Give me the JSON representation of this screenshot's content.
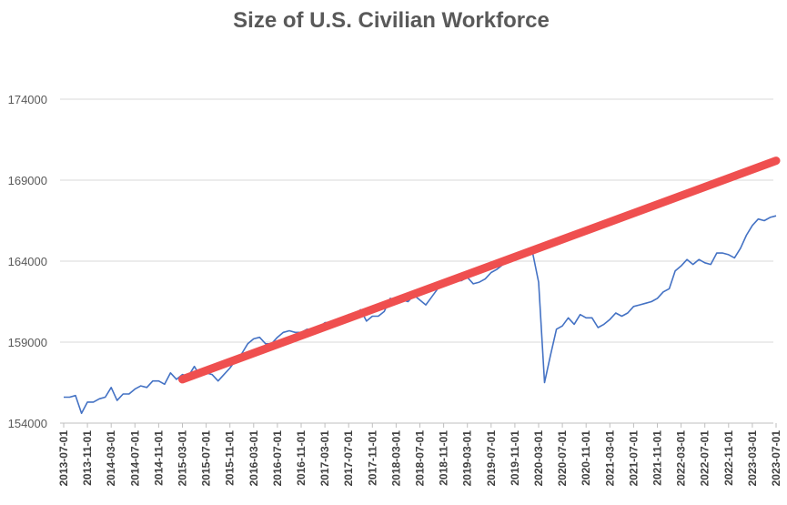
{
  "chart_data": {
    "type": "line",
    "title": "Size of U.S. Civilian Workforce",
    "xlabel": "",
    "ylabel": "",
    "ylim": [
      154000,
      176000
    ],
    "yticks": [
      154000,
      159000,
      164000,
      169000,
      174000
    ],
    "grid": true,
    "legend": "none",
    "xtick_labels": [
      "2013-07-01",
      "2013-11-01",
      "2014-03-01",
      "2014-07-01",
      "2014-11-01",
      "2015-03-01",
      "2015-07-01",
      "2015-11-01",
      "2016-03-01",
      "2016-07-01",
      "2016-11-01",
      "2017-03-01",
      "2017-07-01",
      "2017-11-01",
      "2018-03-01",
      "2018-07-01",
      "2018-11-01",
      "2019-03-01",
      "2019-07-01",
      "2019-11-01",
      "2020-03-01",
      "2020-07-01",
      "2020-11-01",
      "2021-03-01",
      "2021-07-01",
      "2021-11-01",
      "2022-03-01",
      "2022-07-01",
      "2022-11-01",
      "2023-03-01",
      "2023-07-01"
    ],
    "series": [
      {
        "color": "#4472c4",
        "x": [
          "2013-07",
          "2013-08",
          "2013-09",
          "2013-10",
          "2013-11",
          "2013-12",
          "2014-01",
          "2014-02",
          "2014-03",
          "2014-04",
          "2014-05",
          "2014-06",
          "2014-07",
          "2014-08",
          "2014-09",
          "2014-10",
          "2014-11",
          "2014-12",
          "2015-01",
          "2015-02",
          "2015-03",
          "2015-04",
          "2015-05",
          "2015-06",
          "2015-07",
          "2015-08",
          "2015-09",
          "2015-10",
          "2015-11",
          "2015-12",
          "2016-01",
          "2016-02",
          "2016-03",
          "2016-04",
          "2016-05",
          "2016-06",
          "2016-07",
          "2016-08",
          "2016-09",
          "2016-10",
          "2016-11",
          "2016-12",
          "2017-01",
          "2017-02",
          "2017-03",
          "2017-04",
          "2017-05",
          "2017-06",
          "2017-07",
          "2017-08",
          "2017-09",
          "2017-10",
          "2017-11",
          "2017-12",
          "2018-01",
          "2018-02",
          "2018-03",
          "2018-04",
          "2018-05",
          "2018-06",
          "2018-07",
          "2018-08",
          "2018-09",
          "2018-10",
          "2018-11",
          "2018-12",
          "2019-01",
          "2019-02",
          "2019-03",
          "2019-04",
          "2019-05",
          "2019-06",
          "2019-07",
          "2019-08",
          "2019-09",
          "2019-10",
          "2019-11",
          "2019-12",
          "2020-01",
          "2020-02",
          "2020-03",
          "2020-04",
          "2020-05",
          "2020-06",
          "2020-07",
          "2020-08",
          "2020-09",
          "2020-10",
          "2020-11",
          "2020-12",
          "2021-01",
          "2021-02",
          "2021-03",
          "2021-04",
          "2021-05",
          "2021-06",
          "2021-07",
          "2021-08",
          "2021-09",
          "2021-10",
          "2021-11",
          "2021-12",
          "2022-01",
          "2022-02",
          "2022-03",
          "2022-04",
          "2022-05",
          "2022-06",
          "2022-07",
          "2022-08",
          "2022-09",
          "2022-10",
          "2022-11",
          "2022-12",
          "2023-01",
          "2023-02",
          "2023-03",
          "2023-04",
          "2023-05",
          "2023-06",
          "2023-07"
        ],
        "values": [
          155600,
          155600,
          155700,
          154600,
          155300,
          155300,
          155500,
          155600,
          156200,
          155400,
          155800,
          155800,
          156100,
          156300,
          156200,
          156600,
          156600,
          156400,
          157100,
          156700,
          157000,
          156900,
          157500,
          156900,
          157100,
          157000,
          156600,
          157000,
          157400,
          157900,
          158300,
          158900,
          159200,
          159300,
          158900,
          158900,
          159300,
          159600,
          159700,
          159600,
          159600,
          159800,
          159700,
          159900,
          160200,
          160200,
          160200,
          160500,
          160700,
          160700,
          161000,
          160300,
          160600,
          160600,
          160900,
          161700,
          161600,
          161600,
          161500,
          161900,
          161600,
          161300,
          161800,
          162300,
          162800,
          162900,
          162800,
          162800,
          163000,
          162600,
          162700,
          162900,
          163300,
          163500,
          163800,
          164000,
          164100,
          164300,
          164400,
          164500,
          162700,
          156500,
          158200,
          159800,
          160000,
          160500,
          160100,
          160700,
          160500,
          160500,
          159900,
          160100,
          160400,
          160800,
          160600,
          160800,
          161200,
          161300,
          161400,
          161500,
          161700,
          162100,
          162300,
          163400,
          163700,
          164100,
          163800,
          164100,
          163900,
          163800,
          164500,
          164500,
          164400,
          164200,
          164800,
          165600,
          166200,
          166600,
          166500,
          166700,
          166800
        ]
      },
      {
        "color": "#ef4f4f",
        "x": [
          "2015-03",
          "2023-07"
        ],
        "values": [
          156700,
          170200
        ]
      }
    ]
  }
}
